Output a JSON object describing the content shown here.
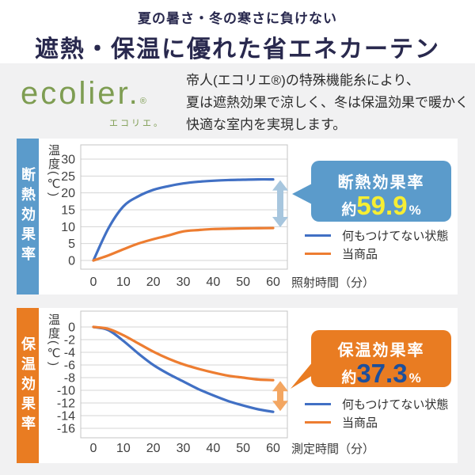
{
  "page": {
    "header": {
      "subtitle": "夏の暑さ・冬の寒さに負けない",
      "title": "遮熱・保温に優れた省エネカーテン"
    },
    "intro": {
      "logo_text": "ecolier",
      "logo_dot": ".",
      "logo_reg": "®",
      "logo_sub": "エコリエ。",
      "description_lines": [
        "帝人(エコリエ®)の特殊機能糸により、",
        "夏は遮熱効果で涼しく、冬は保温効果で暖かく",
        "快適な室内を実現します。"
      ]
    }
  },
  "colors": {
    "page_background": "#f1f1f2",
    "heading_navy": "#29294e",
    "logo_green": "#7e9d52",
    "grid_line": "#d4d4d4",
    "plot_border": "#c4c4c4"
  },
  "chart_data": [
    {
      "type": "line",
      "section_label": "断熱効果率",
      "accent": "#5b9bcb",
      "title": "",
      "xlabel": "照射時間（分）",
      "ylabel": "温度(℃)",
      "x": [
        0,
        5,
        10,
        15,
        20,
        25,
        30,
        35,
        40,
        45,
        50,
        55,
        60
      ],
      "series": [
        {
          "name": "何もつけてない状態",
          "color": "#4170c4",
          "values": [
            0,
            9.5,
            16,
            19,
            20.9,
            22,
            22.8,
            23.3,
            23.6,
            23.8,
            23.9,
            24,
            24
          ]
        },
        {
          "name": "当商品",
          "color": "#ed7d31",
          "values": [
            0,
            1.5,
            3.3,
            5,
            6.3,
            7.4,
            8.6,
            9,
            9.3,
            9.4,
            9.5,
            9.55,
            9.6
          ]
        }
      ],
      "ylim": [
        0,
        30
      ],
      "yticks": [
        30,
        25,
        20,
        15,
        10,
        5,
        0
      ],
      "xticks": [
        0,
        10,
        20,
        30,
        40,
        50,
        60
      ],
      "grid": "horizontal",
      "legend_position": "right-bottom",
      "callout": {
        "title": "断熱効果率",
        "prefix": "約",
        "value": "59.9",
        "unit": "%",
        "value_color": "#f6ee33"
      },
      "diff_arrow": {
        "at_x": 60,
        "between": [
          "何もつけてない状態",
          "当商品"
        ],
        "color": "#a7c6de"
      }
    },
    {
      "type": "line",
      "section_label": "保温効果率",
      "accent": "#e97c22",
      "title": "",
      "xlabel": "測定時間（分）",
      "ylabel": "温度(℃)",
      "x": [
        0,
        5,
        10,
        15,
        20,
        25,
        30,
        35,
        40,
        45,
        50,
        55,
        60
      ],
      "series": [
        {
          "name": "何もつけてない状態",
          "color": "#4170c4",
          "values": [
            0,
            -0.5,
            -2.2,
            -4.2,
            -6,
            -7.4,
            -8.6,
            -9.8,
            -10.8,
            -11.7,
            -12.4,
            -13,
            -13.4
          ]
        },
        {
          "name": "当商品",
          "color": "#ed7d31",
          "values": [
            0,
            -0.3,
            -1.3,
            -2.6,
            -3.9,
            -5,
            -5.9,
            -6.6,
            -7.2,
            -7.7,
            -8,
            -8.3,
            -8.4
          ]
        }
      ],
      "ylim": [
        0,
        -16
      ],
      "yticks": [
        0,
        -2,
        -4,
        -6,
        -8,
        -10,
        -12,
        -14,
        -16
      ],
      "xticks": [
        0,
        10,
        20,
        30,
        40,
        50,
        60
      ],
      "grid": "horizontal",
      "legend_position": "right-bottom",
      "callout": {
        "title": "保温効果率",
        "prefix": "約",
        "value": "37.3",
        "unit": "%",
        "value_color": "#1c4f9c"
      },
      "diff_arrow": {
        "at_x": 60,
        "between": [
          "当商品",
          "何もつけてない状態"
        ],
        "color": "#f3a661"
      }
    }
  ]
}
